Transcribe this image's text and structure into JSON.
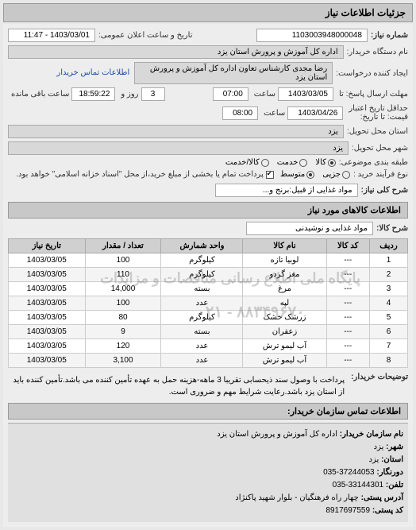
{
  "header": {
    "title": "جزئیات اطلاعات نیاز"
  },
  "form": {
    "reqNumLabel": "شماره نیاز:",
    "reqNum": "1103003948000048",
    "announceLabel": "تاریخ و ساعت اعلان عمومی:",
    "announceVal": "1403/03/01 - 11:47",
    "buyerDeviceLabel": "نام دستگاه خریدار:",
    "buyerDevice": "اداره کل آموزش و پرورش استان یزد",
    "requesterLabel": "ایجاد کننده درخواست:",
    "requester": "رضا مجدی کارشناس تعاون اداره کل آموزش و پرورش استان یزد",
    "contactLink": "اطلاعات تماس خریدار",
    "deadlineSendLabel": "مهلت ارسال پاسخ: تا",
    "deadlineSendDate": "1403/03/05",
    "timeLabel": "ساعت",
    "deadlineSendTime": "07:00",
    "remainLabel1": "روز و",
    "remainDays": "3",
    "remainTime": "18:59:22",
    "remainLabel2": "ساعت باقی مانده",
    "validLabel": "حداقل تاریخ اعتبار",
    "validLabel2": "قیمت: تا تاریخ:",
    "validDate": "1403/04/26",
    "validTime": "08:00",
    "provinceLabel": "استان محل تحویل:",
    "province": "یزد",
    "cityLabel": "شهر محل تحویل:",
    "city": "یزد",
    "categoryLabel": "طبقه بندی موضوعی:",
    "catOpts": {
      "kala": "کالا",
      "khadamat": "کالا/خدمت",
      "khadmat": "خدمت"
    },
    "processLabel": "نوع فرآیند خرید :",
    "procOpts": {
      "jozi": "جزیی",
      "motavaset": "متوسط"
    },
    "processNote": "پرداخت تمام یا بخشی از مبلغ خرید،از محل \"اسناد خزانه اسلامی\" خواهد بود.",
    "descLabel": "شرح کلی نیاز:",
    "desc": "مواد غذایی از قبیل:برنج و...",
    "goodsHeader": "اطلاعات کالاهای مورد نیاز",
    "goodsNameLabel": "شرح کالا:",
    "goodsName": "مواد غذایی و نوشیدنی"
  },
  "table": {
    "cols": {
      "row": "ردیف",
      "code": "کد کالا",
      "name": "نام کالا",
      "unit": "واحد شمارش",
      "qty": "تعداد / مقدار",
      "date": "تاریخ نیاز"
    },
    "rows": [
      {
        "r": "1",
        "code": "---",
        "name": "لوبیا تازه",
        "unit": "کیلوگرم",
        "qty": "100",
        "date": "1403/03/05"
      },
      {
        "r": "2",
        "code": "---",
        "name": "مغز گردو",
        "unit": "کیلوگرم",
        "qty": "110",
        "date": "1403/03/05"
      },
      {
        "r": "3",
        "code": "---",
        "name": "مرغ",
        "unit": "بسته",
        "qty": "14,000",
        "date": "1403/03/05"
      },
      {
        "r": "4",
        "code": "---",
        "name": "لپه",
        "unit": "عدد",
        "qty": "100",
        "date": "1403/03/05"
      },
      {
        "r": "5",
        "code": "---",
        "name": "زرشک خشک",
        "unit": "کیلوگرم",
        "qty": "80",
        "date": "1403/03/05"
      },
      {
        "r": "6",
        "code": "---",
        "name": "زعفران",
        "unit": "بسته",
        "qty": "9",
        "date": "1403/03/05"
      },
      {
        "r": "7",
        "code": "---",
        "name": "آب لیمو ترش",
        "unit": "عدد",
        "qty": "120",
        "date": "1403/03/05"
      },
      {
        "r": "8",
        "code": "---",
        "name": "آب لیمو ترش",
        "unit": "عدد",
        "qty": "3,100",
        "date": "1403/03/05"
      }
    ],
    "watermark1": "پایگاه ملی اطلاع رسانی مناقصات و مزایدات",
    "watermark2": "۸۸۳۴۹۶۷۰ - ۰۲۱"
  },
  "notes": {
    "label": "توضیحات خریدار:",
    "text": "پرداخت با وصول سند ذیحسابی تقریبا 3 ماهه-هزینه حمل به عهده تأمین کننده می باشد.تأمین کننده باید از استان یزد باشد.رعایت شرایط مهم و ضروری است."
  },
  "contact": {
    "title": "اطلاعات تماس سازمان خریدار:",
    "orgLabel": "نام سازمان خریدار:",
    "org": "اداره کل آموزش و پرورش استان یزد",
    "cityLabel": "شهر:",
    "city": "یزد",
    "provLabel": "استان:",
    "prov": "یزد",
    "faxLabel": "دورنگار:",
    "fax": "37244053-035",
    "telLabel": "تلفن:",
    "tel": "33144301-035",
    "addrLabel": "آدرس پستی:",
    "addr": "چهار راه فرهنگیان - بلوار شهید پاکنژاد",
    "postLabel": "کد پستی:",
    "post": "8917697559"
  }
}
